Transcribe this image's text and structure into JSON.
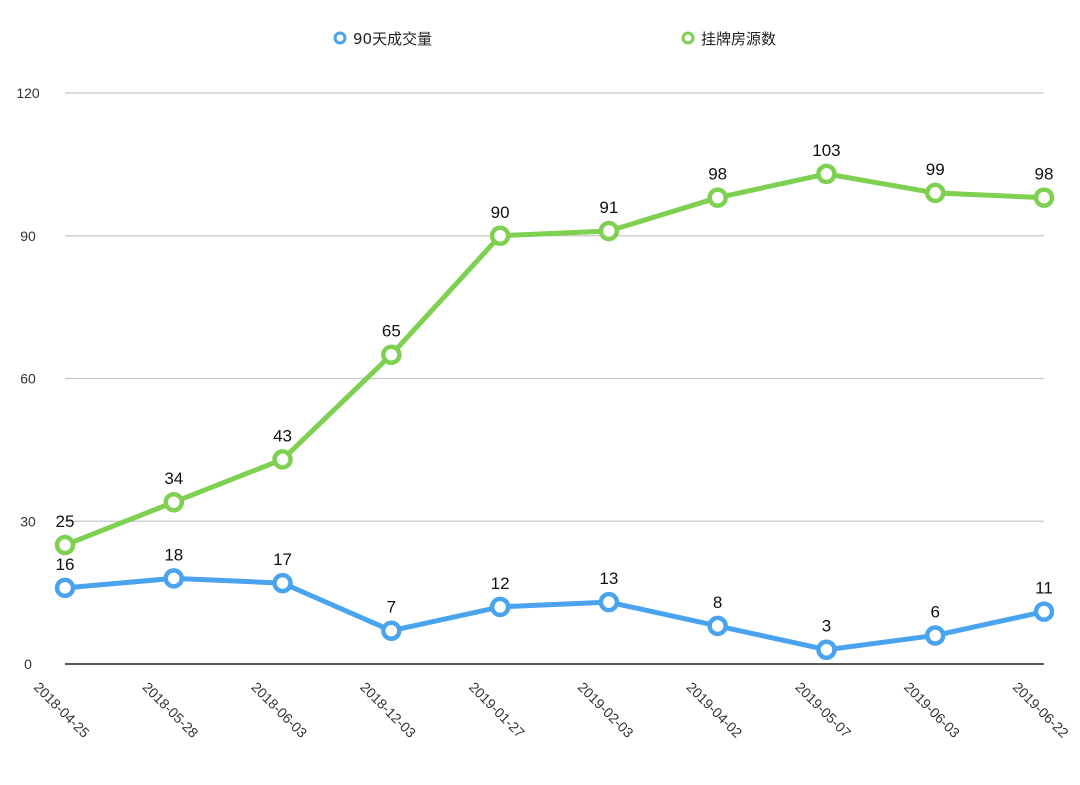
{
  "chart_data": {
    "type": "line",
    "categories": [
      "2018-04-25",
      "2018-05-28",
      "2018-06-03",
      "2018-12-03",
      "2019-01-27",
      "2019-02-03",
      "2019-04-02",
      "2019-05-07",
      "2019-06-03",
      "2019-06-22"
    ],
    "series": [
      {
        "name": "90天成交量",
        "color": "#4aa3ee",
        "values": [
          16,
          18,
          17,
          7,
          12,
          13,
          8,
          3,
          6,
          11
        ]
      },
      {
        "name": "挂牌房源数",
        "color": "#7ed050",
        "values": [
          25,
          34,
          43,
          65,
          90,
          91,
          98,
          103,
          99,
          98
        ]
      }
    ],
    "yticks": [
      "0",
      "30",
      "60",
      "90",
      "120"
    ],
    "ylim": [
      0,
      120
    ],
    "grid": true,
    "legend": "top-center"
  }
}
